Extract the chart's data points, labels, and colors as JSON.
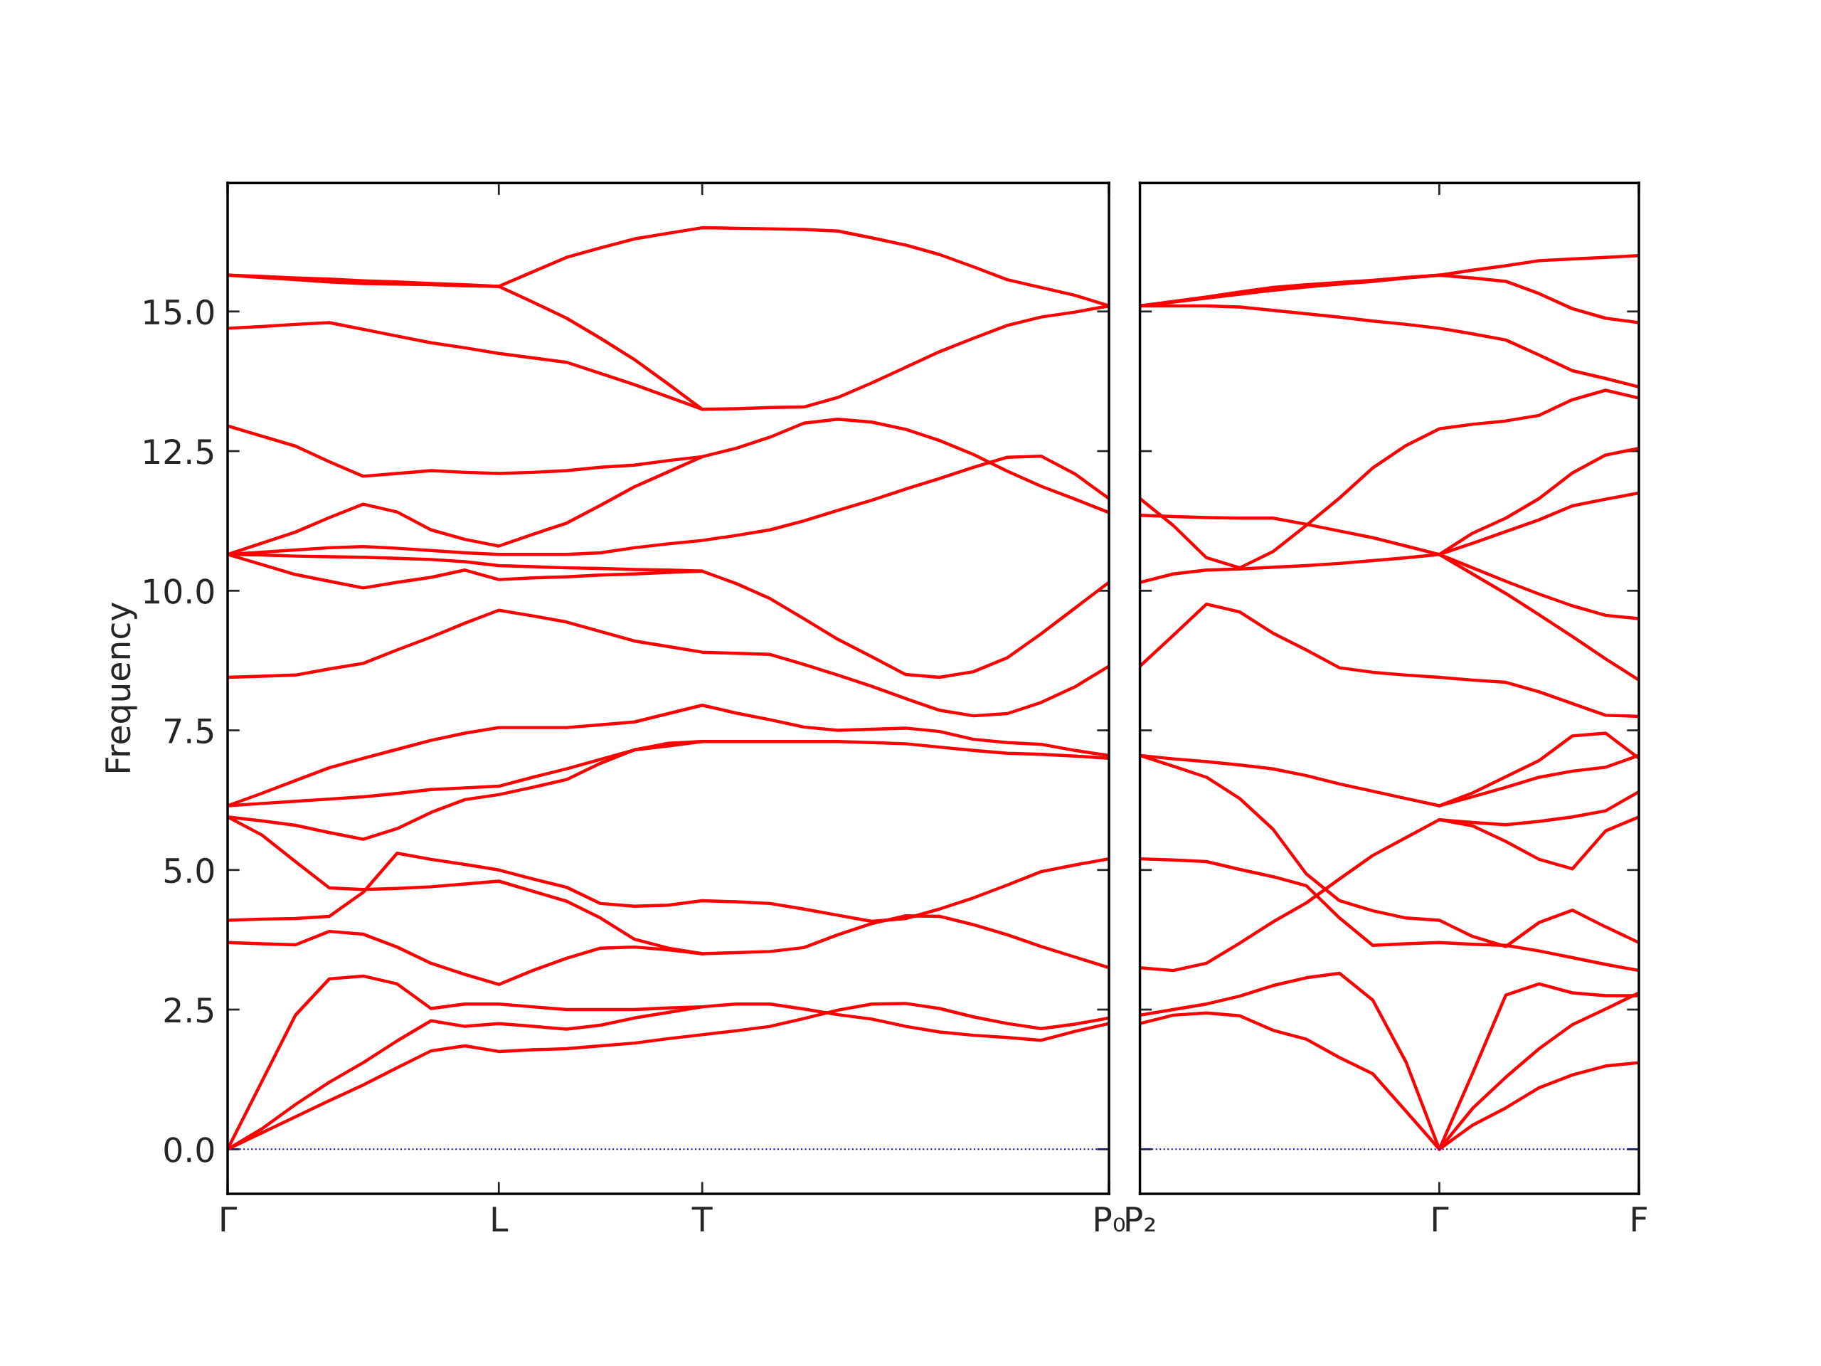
{
  "chart_data": [
    {
      "type": "line",
      "ylabel": "Frequency",
      "ylim": [
        -0.8,
        17.3
      ],
      "categories": [
        "Γ",
        null,
        null,
        null,
        null,
        null,
        null,
        null,
        "L",
        null,
        null,
        null,
        null,
        null,
        "T",
        null,
        null,
        null,
        null,
        null,
        null,
        null,
        null,
        null,
        null,
        null,
        "P₀"
      ],
      "yticks": [
        {
          "value": 0,
          "label": "0.0"
        },
        {
          "value": 2.5,
          "label": "2.5"
        },
        {
          "value": 5,
          "label": "5.0"
        },
        {
          "value": 7.5,
          "label": "7.5"
        },
        {
          "value": 10,
          "label": "10.0"
        },
        {
          "value": 12.5,
          "label": "12.5"
        },
        {
          "value": 15,
          "label": "15.0"
        }
      ],
      "grid": false,
      "legend": false,
      "marker": "none",
      "line_style": "solid",
      "ref_lines": [
        {
          "axis": "y",
          "value": 0,
          "color": "#0000ff",
          "line_style": "dotted"
        }
      ],
      "series": [
        {
          "color": "#ff0000",
          "values": [
            0,
            0.29,
            0.58,
            0.87,
            1.15,
            1.46,
            1.76,
            1.85,
            1.75,
            1.78,
            1.8,
            1.85,
            1.9,
            1.98,
            2.05,
            2.12,
            2.2,
            2.34,
            2.49,
            2.6,
            2.61,
            2.52,
            2.37,
            2.25,
            2.16,
            2.24,
            2.35
          ]
        },
        {
          "color": "#ff0000",
          "values": [
            0,
            0.36,
            0.8,
            1.2,
            1.55,
            1.94,
            2.3,
            2.2,
            2.25,
            2.2,
            2.15,
            2.22,
            2.35,
            2.45,
            2.55,
            2.6,
            2.6,
            2.51,
            2.41,
            2.33,
            2.2,
            2.1,
            2.04,
            2.0,
            1.95,
            2.11,
            2.25
          ]
        },
        {
          "color": "#ff0000",
          "values": [
            0,
            1.2,
            2.4,
            3.05,
            3.1,
            2.96,
            2.52,
            2.6,
            2.6,
            2.55,
            2.5,
            2.5,
            2.5,
            2.53,
            2.55,
            null,
            null,
            null,
            null,
            null,
            null,
            null,
            null,
            null,
            null,
            null,
            null
          ]
        },
        {
          "color": "#ff0000",
          "values": [
            3.7,
            3.68,
            3.66,
            3.9,
            3.85,
            3.62,
            3.33,
            3.13,
            2.95,
            3.2,
            3.42,
            3.6,
            3.62,
            3.57,
            3.5,
            3.52,
            3.54,
            3.61,
            3.84,
            4.04,
            4.18,
            4.17,
            4.02,
            3.84,
            3.63,
            3.44,
            3.25
          ]
        },
        {
          "color": "#ff0000",
          "values": [
            4.1,
            4.12,
            4.13,
            4.17,
            4.6,
            5.3,
            5.19,
            5.1,
            5.0,
            4.84,
            4.69,
            4.4,
            4.35,
            4.37,
            4.45,
            4.43,
            4.4,
            4.3,
            4.19,
            4.08,
            4.13,
            4.3,
            4.5,
            4.73,
            4.97,
            5.09,
            5.2
          ]
        },
        {
          "color": "#ff0000",
          "values": [
            5.95,
            5.63,
            5.15,
            4.68,
            4.65,
            4.67,
            4.7,
            4.75,
            4.8,
            4.62,
            4.44,
            4.14,
            3.76,
            3.6,
            3.5,
            null,
            null,
            null,
            null,
            null,
            null,
            null,
            null,
            null,
            null,
            null,
            null
          ]
        },
        {
          "color": "#ff0000",
          "values": [
            5.95,
            5.88,
            5.8,
            5.67,
            5.55,
            5.74,
            6.03,
            6.26,
            6.35,
            6.48,
            6.62,
            6.91,
            7.15,
            7.27,
            7.3,
            7.3,
            7.3,
            7.3,
            7.3,
            7.28,
            7.26,
            7.2,
            7.14,
            7.09,
            7.07,
            7.04,
            7.0
          ]
        },
        {
          "color": "#ff0000",
          "values": [
            6.15,
            6.19,
            6.23,
            6.27,
            6.31,
            6.37,
            6.44,
            6.47,
            6.5,
            6.66,
            6.81,
            6.98,
            7.15,
            7.22,
            7.3,
            null,
            null,
            null,
            null,
            null,
            null,
            null,
            null,
            null,
            null,
            null,
            null
          ]
        },
        {
          "color": "#ff0000",
          "values": [
            6.15,
            6.37,
            6.6,
            6.83,
            7.0,
            7.16,
            7.32,
            7.45,
            7.55,
            7.55,
            7.55,
            7.6,
            7.65,
            7.8,
            7.95,
            7.81,
            7.69,
            7.56,
            7.5,
            7.52,
            7.54,
            7.48,
            7.34,
            7.28,
            7.25,
            7.14,
            7.05
          ]
        },
        {
          "color": "#ff0000",
          "values": [
            8.45,
            8.47,
            8.49,
            8.6,
            8.7,
            8.94,
            9.17,
            9.42,
            9.65,
            9.55,
            9.44,
            9.27,
            9.1,
            9.0,
            8.9,
            8.88,
            8.86,
            8.68,
            8.49,
            8.29,
            8.07,
            7.86,
            7.76,
            7.8,
            8.0,
            8.28,
            8.65
          ]
        },
        {
          "color": "#ff0000",
          "values": [
            10.65,
            10.47,
            10.29,
            10.17,
            10.05,
            10.15,
            10.24,
            10.37,
            10.2,
            10.23,
            10.25,
            10.28,
            10.3,
            10.33,
            10.35,
            10.13,
            9.86,
            9.5,
            9.13,
            8.82,
            8.5,
            8.45,
            8.55,
            8.8,
            9.23,
            9.69,
            10.15
          ]
        },
        {
          "color": "#ff0000",
          "values": [
            10.65,
            10.64,
            10.62,
            10.61,
            10.6,
            10.58,
            10.56,
            10.52,
            10.45,
            10.43,
            10.41,
            10.4,
            10.38,
            10.37,
            10.35,
            null,
            null,
            null,
            null,
            null,
            null,
            null,
            null,
            null,
            null,
            null,
            null
          ]
        },
        {
          "color": "#ff0000",
          "values": [
            10.65,
            10.69,
            10.73,
            10.77,
            10.79,
            10.76,
            10.72,
            10.68,
            10.65,
            10.65,
            10.65,
            10.68,
            10.77,
            10.84,
            10.9,
            10.99,
            11.09,
            11.25,
            11.44,
            11.62,
            11.82,
            12.01,
            12.21,
            12.39,
            12.41,
            12.09,
            11.65
          ]
        },
        {
          "color": "#ff0000",
          "values": [
            10.65,
            10.85,
            11.05,
            11.31,
            11.55,
            11.41,
            11.09,
            10.92,
            10.8,
            11.01,
            11.21,
            11.53,
            11.86,
            12.13,
            12.4,
            12.55,
            12.75,
            13.0,
            13.07,
            13.02,
            12.89,
            12.69,
            12.44,
            12.14,
            11.87,
            11.64,
            11.4
          ]
        },
        {
          "color": "#ff0000",
          "values": [
            12.95,
            12.77,
            12.59,
            12.31,
            12.05,
            12.1,
            12.15,
            12.12,
            12.1,
            12.12,
            12.15,
            12.21,
            12.25,
            12.33,
            12.4,
            null,
            null,
            null,
            null,
            null,
            null,
            null,
            null,
            null,
            null,
            null,
            null
          ]
        },
        {
          "color": "#ff0000",
          "values": [
            14.7,
            14.73,
            14.77,
            14.8,
            14.68,
            14.56,
            14.44,
            14.35,
            14.25,
            14.17,
            14.09,
            13.89,
            13.69,
            13.47,
            13.25,
            13.26,
            13.28,
            13.29,
            13.46,
            13.72,
            14.0,
            14.28,
            14.52,
            14.75,
            14.9,
            14.99,
            15.1
          ]
        },
        {
          "color": "#ff0000",
          "values": [
            15.65,
            15.63,
            15.6,
            15.58,
            15.55,
            15.53,
            15.5,
            15.48,
            15.45,
            15.17,
            14.88,
            14.52,
            14.14,
            13.7,
            13.25,
            null,
            null,
            null,
            null,
            null,
            null,
            null,
            null,
            null,
            null,
            null,
            null
          ]
        },
        {
          "color": "#ff0000",
          "values": [
            15.65,
            15.61,
            15.57,
            15.53,
            15.5,
            15.49,
            15.48,
            15.46,
            15.45,
            15.71,
            15.97,
            16.14,
            16.3,
            16.4,
            16.5,
            16.49,
            16.48,
            16.47,
            16.44,
            16.32,
            16.19,
            16.02,
            15.8,
            15.57,
            15.43,
            15.29,
            15.1
          ]
        }
      ]
    },
    {
      "type": "line",
      "ylim": [
        -0.8,
        17.3
      ],
      "tick_labels": "x",
      "categories": [
        "P₂",
        null,
        null,
        null,
        null,
        null,
        null,
        null,
        null,
        "Γ",
        null,
        null,
        null,
        null,
        null,
        "F"
      ],
      "yticks": [
        {
          "value": 0,
          "label": null
        },
        {
          "value": 2.5,
          "label": null
        },
        {
          "value": 5,
          "label": null
        },
        {
          "value": 7.5,
          "label": null
        },
        {
          "value": 10,
          "label": null
        },
        {
          "value": 12.5,
          "label": null
        },
        {
          "value": 15,
          "label": null
        }
      ],
      "grid": false,
      "legend": false,
      "marker": "none",
      "line_style": "solid",
      "ref_lines": [
        {
          "axis": "y",
          "value": 0,
          "color": "#0000ff",
          "line_style": "dotted"
        }
      ],
      "series": [
        {
          "color": "#ff0000",
          "values": [
            2.25,
            2.4,
            2.44,
            2.39,
            2.13,
            1.97,
            1.64,
            1.35,
            0.68,
            0,
            0.43,
            0.74,
            1.1,
            1.33,
            1.49,
            1.55
          ]
        },
        {
          "color": "#ff0000",
          "values": [
            2.4,
            2.5,
            2.6,
            2.74,
            2.93,
            3.07,
            3.15,
            2.67,
            1.56,
            0,
            0.73,
            1.29,
            1.8,
            2.23,
            2.51,
            2.8
          ]
        },
        {
          "color": "#ff0000",
          "values": [
            null,
            null,
            null,
            null,
            null,
            null,
            null,
            null,
            null,
            0,
            1.36,
            2.76,
            2.96,
            2.8,
            2.75,
            2.75
          ]
        },
        {
          "color": "#ff0000",
          "values": [
            3.25,
            3.2,
            3.33,
            3.69,
            4.07,
            4.41,
            4.84,
            5.26,
            5.58,
            5.9,
            5.79,
            5.51,
            5.19,
            5.02,
            5.7,
            5.95
          ]
        },
        {
          "color": "#ff0000",
          "values": [
            5.2,
            5.18,
            5.15,
            5.01,
            4.88,
            4.72,
            4.14,
            3.65,
            3.68,
            3.7,
            3.67,
            3.65,
            3.55,
            3.43,
            3.31,
            3.2
          ]
        },
        {
          "color": "#ff0000",
          "values": [
            7.05,
            6.86,
            6.66,
            6.28,
            5.73,
            4.93,
            4.45,
            4.27,
            4.14,
            4.1,
            3.81,
            3.63,
            4.06,
            4.28,
            3.98,
            3.7
          ]
        },
        {
          "color": "#ff0000",
          "values": [
            7.05,
            6.99,
            6.94,
            6.88,
            6.81,
            6.69,
            6.54,
            6.41,
            6.28,
            6.15,
            6.38,
            6.67,
            6.96,
            7.4,
            7.45,
            7.0
          ]
        },
        {
          "color": "#ff0000",
          "values": [
            null,
            null,
            null,
            null,
            null,
            null,
            null,
            null,
            null,
            6.15,
            6.31,
            6.48,
            6.66,
            6.77,
            6.84,
            7.05
          ]
        },
        {
          "color": "#ff0000",
          "values": [
            null,
            null,
            null,
            null,
            null,
            null,
            null,
            null,
            null,
            5.9,
            5.85,
            5.81,
            5.87,
            5.95,
            6.06,
            6.4
          ]
        },
        {
          "color": "#ff0000",
          "values": [
            8.65,
            9.2,
            9.76,
            9.62,
            9.24,
            8.94,
            8.62,
            8.54,
            8.49,
            8.45,
            8.4,
            8.36,
            8.19,
            7.98,
            7.77,
            7.75
          ]
        },
        {
          "color": "#ff0000",
          "values": [
            10.15,
            10.3,
            10.37,
            10.39,
            10.42,
            10.45,
            10.49,
            10.54,
            10.59,
            10.65,
            10.3,
            9.95,
            9.57,
            9.18,
            8.78,
            8.4
          ]
        },
        {
          "color": "#ff0000",
          "values": [
            11.65,
            11.17,
            10.59,
            10.41,
            10.7,
            11.17,
            11.66,
            12.2,
            12.6,
            12.9,
            12.98,
            13.04,
            13.14,
            13.42,
            13.59,
            13.45
          ]
        },
        {
          "color": "#ff0000",
          "values": [
            11.35,
            11.33,
            11.31,
            11.3,
            11.3,
            11.19,
            11.07,
            10.95,
            10.8,
            10.65,
            10.85,
            11.06,
            11.27,
            11.52,
            11.64,
            11.75
          ]
        },
        {
          "color": "#ff0000",
          "values": [
            null,
            null,
            null,
            null,
            null,
            null,
            null,
            null,
            null,
            10.65,
            11.03,
            11.3,
            11.65,
            12.11,
            12.43,
            12.55
          ]
        },
        {
          "color": "#ff0000",
          "values": [
            null,
            null,
            null,
            null,
            null,
            null,
            null,
            null,
            null,
            10.65,
            10.41,
            10.17,
            9.94,
            9.73,
            9.56,
            9.5
          ]
        },
        {
          "color": "#ff0000",
          "values": [
            15.1,
            15.1,
            15.1,
            15.08,
            15.02,
            14.96,
            14.9,
            14.83,
            14.77,
            14.7,
            14.6,
            14.49,
            14.22,
            13.94,
            13.8,
            13.65
          ]
        },
        {
          "color": "#ff0000",
          "values": [
            15.1,
            15.18,
            15.26,
            15.35,
            15.43,
            15.48,
            15.52,
            15.56,
            15.61,
            15.65,
            15.6,
            15.54,
            15.32,
            15.05,
            14.88,
            14.8
          ]
        },
        {
          "color": "#ff0000",
          "values": [
            15.1,
            15.17,
            15.24,
            15.31,
            15.38,
            15.44,
            15.49,
            15.54,
            15.6,
            15.65,
            15.74,
            15.82,
            15.91,
            15.94,
            15.97,
            16.0
          ]
        }
      ]
    }
  ]
}
